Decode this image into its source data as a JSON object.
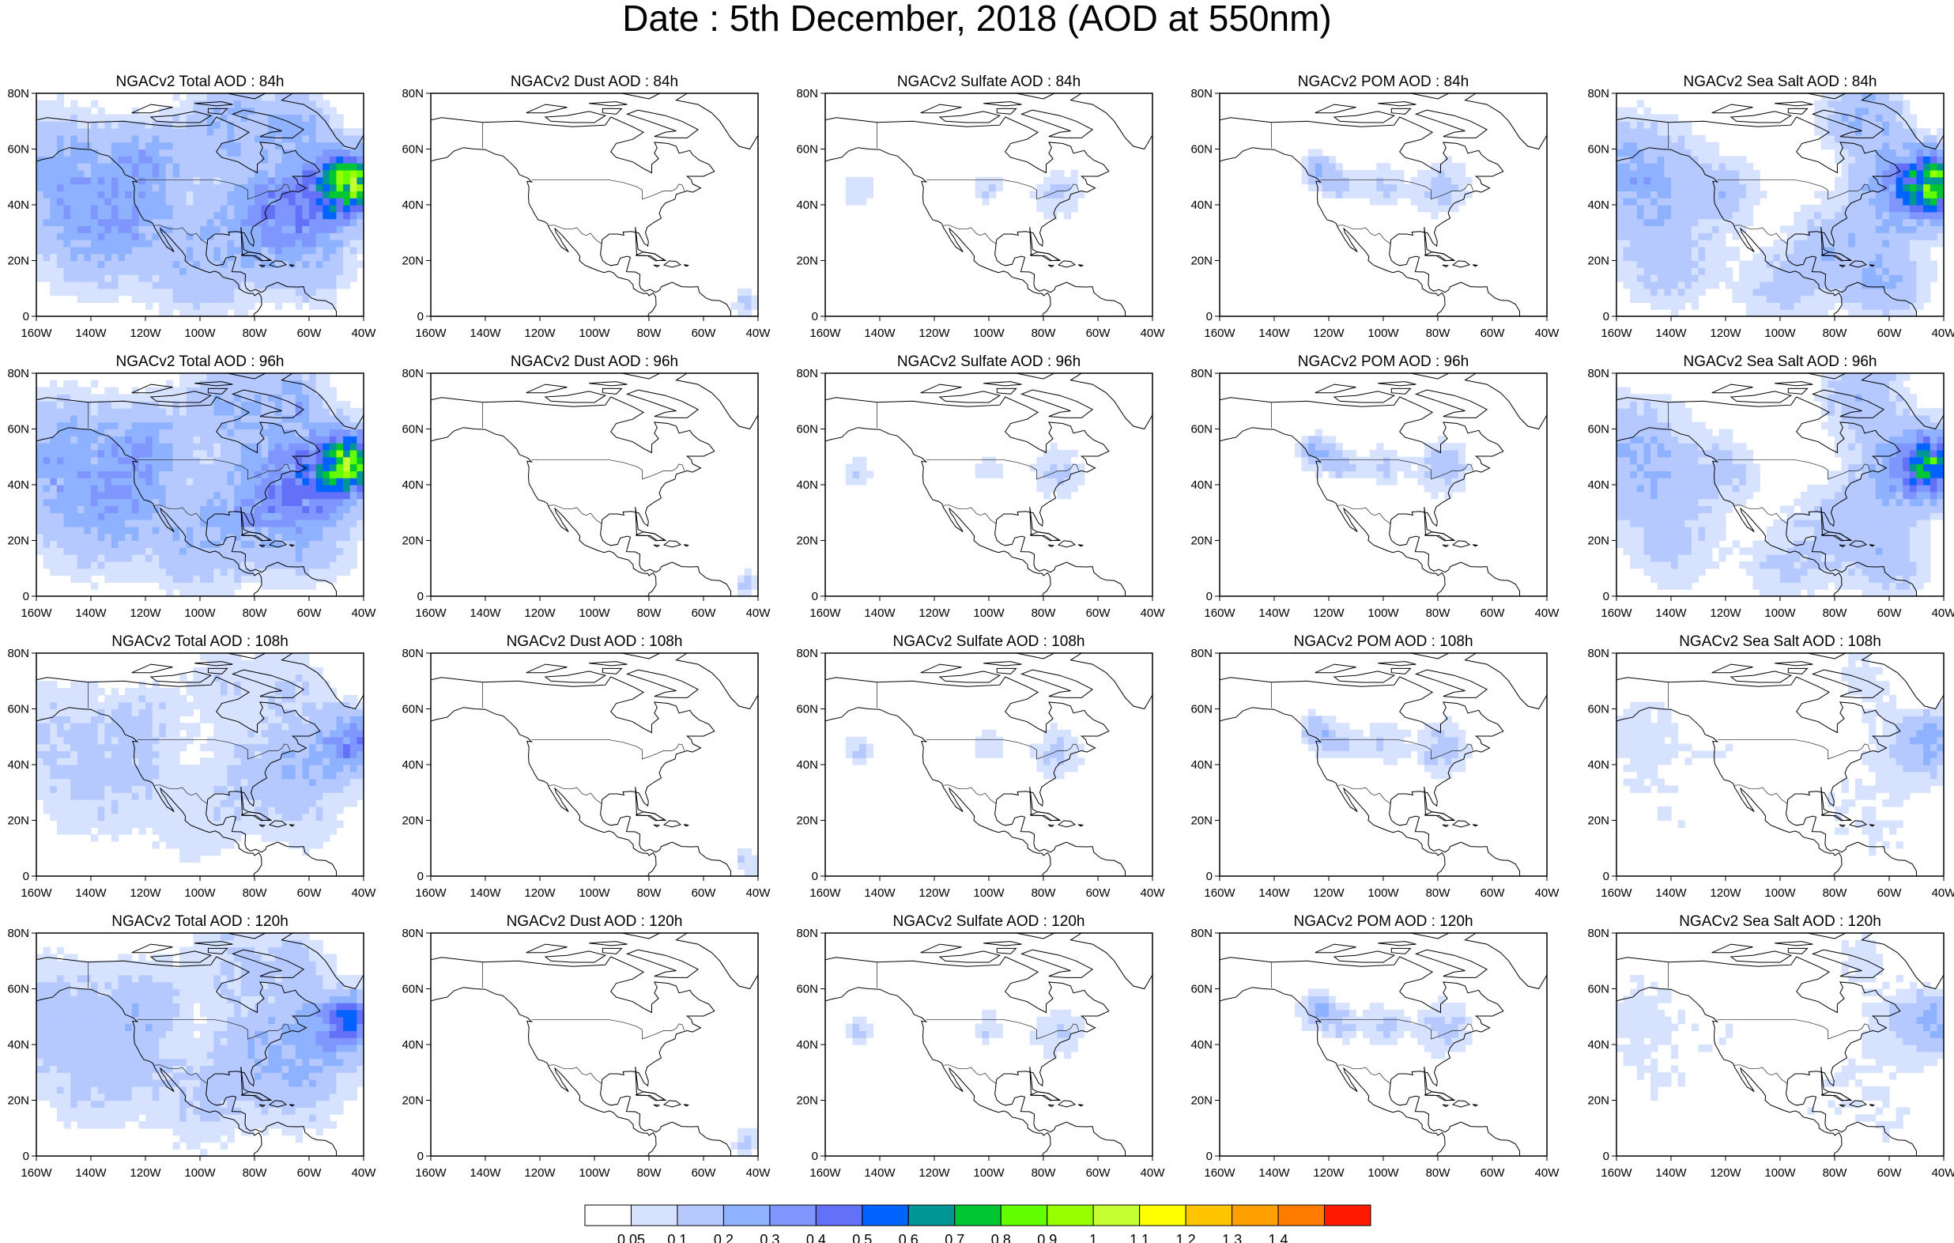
{
  "title": "Date : 5th December, 2018 (AOD at 550nm)",
  "lon_ticks": [
    "160W",
    "140W",
    "120W",
    "100W",
    "80W",
    "60W",
    "40W"
  ],
  "lat_ticks": [
    "0",
    "20N",
    "40N",
    "60N",
    "80N"
  ],
  "colorbar": {
    "colors": [
      "#ffffff",
      "#d6e2ff",
      "#b5c9ff",
      "#8eb2ff",
      "#7f96ff",
      "#6370f8",
      "#0063ff",
      "#009696",
      "#00c633",
      "#63ff00",
      "#96ff00",
      "#c6ff33",
      "#ffff00",
      "#ffc600",
      "#ffa000",
      "#ff7c00",
      "#ff1900"
    ],
    "labels": [
      "0.05",
      "0.1",
      "0.2",
      "0.3",
      "0.4",
      "0.5",
      "0.6",
      "0.7",
      "0.8",
      "0.9",
      "1",
      "1.1",
      "1.2",
      "1.3",
      "1.4"
    ]
  },
  "chart_data": {
    "type": "heatmap",
    "title": "Date : 5th December, 2018 (AOD at 550nm)",
    "domain": {
      "lon_range": [
        "160W",
        "40W"
      ],
      "lat_range": [
        "0",
        "80N"
      ]
    },
    "rows": [
      {
        "lead": "84h",
        "panels": [
          {
            "title": "NGACv2 Total AOD : 84h",
            "species": "total",
            "max_aod": 0.7
          },
          {
            "title": "NGACv2 Dust AOD : 84h",
            "species": "dust",
            "max_aod": 0.1
          },
          {
            "title": "NGACv2 Sulfate AOD : 84h",
            "species": "sulfate",
            "max_aod": 0.1
          },
          {
            "title": "NGACv2 POM AOD : 84h",
            "species": "pom",
            "max_aod": 0.2
          },
          {
            "title": "NGACv2 Sea Salt AOD : 84h",
            "species": "seasalt",
            "max_aod": 0.7
          }
        ]
      },
      {
        "lead": "96h",
        "panels": [
          {
            "title": "NGACv2 Total AOD : 96h",
            "species": "total",
            "max_aod": 0.7
          },
          {
            "title": "NGACv2 Dust AOD : 96h",
            "species": "dust",
            "max_aod": 0.1
          },
          {
            "title": "NGACv2 Sulfate AOD : 96h",
            "species": "sulfate",
            "max_aod": 0.1
          },
          {
            "title": "NGACv2 POM AOD : 96h",
            "species": "pom",
            "max_aod": 0.2
          },
          {
            "title": "NGACv2 Sea Salt AOD : 96h",
            "species": "seasalt",
            "max_aod": 0.6
          }
        ]
      },
      {
        "lead": "108h",
        "panels": [
          {
            "title": "NGACv2 Total AOD : 108h",
            "species": "total",
            "max_aod": 0.3
          },
          {
            "title": "NGACv2 Dust AOD : 108h",
            "species": "dust",
            "max_aod": 0.1
          },
          {
            "title": "NGACv2 Sulfate AOD : 108h",
            "species": "sulfate",
            "max_aod": 0.1
          },
          {
            "title": "NGACv2 POM AOD : 108h",
            "species": "pom",
            "max_aod": 0.2
          },
          {
            "title": "NGACv2 Sea Salt AOD : 108h",
            "species": "seasalt",
            "max_aod": 0.2
          }
        ]
      },
      {
        "lead": "120h",
        "panels": [
          {
            "title": "NGACv2 Total AOD : 120h",
            "species": "total",
            "max_aod": 0.4
          },
          {
            "title": "NGACv2 Dust AOD : 120h",
            "species": "dust",
            "max_aod": 0.1
          },
          {
            "title": "NGACv2 Sulfate AOD : 120h",
            "species": "sulfate",
            "max_aod": 0.1
          },
          {
            "title": "NGACv2 POM AOD : 120h",
            "species": "pom",
            "max_aod": 0.4
          },
          {
            "title": "NGACv2 Sea Salt  AOD : 120h",
            "species": "seasalt",
            "max_aod": 0.2
          }
        ]
      }
    ]
  }
}
